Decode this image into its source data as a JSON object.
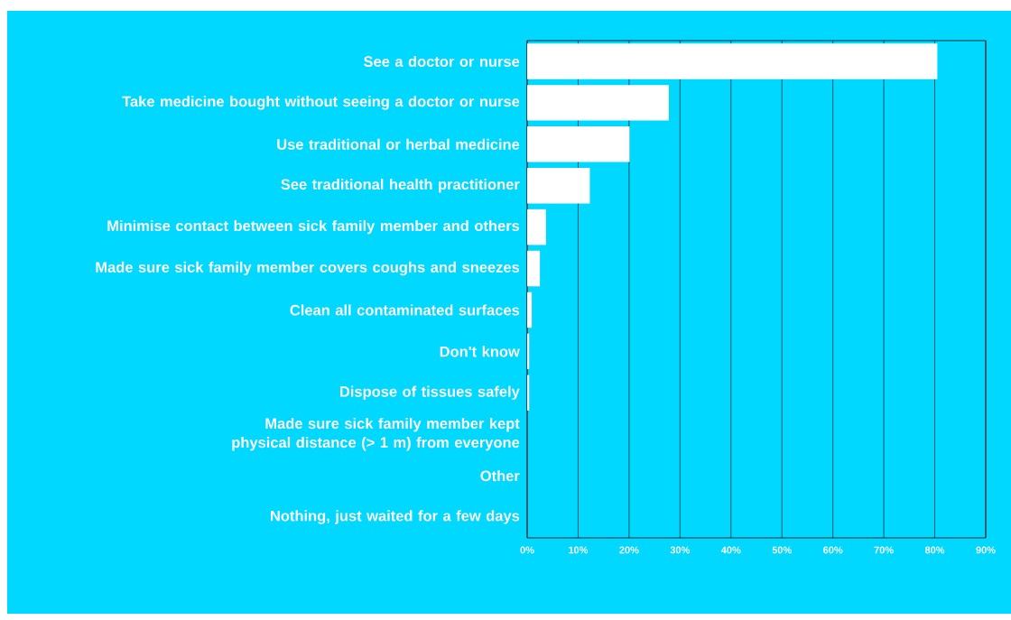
{
  "chart_data": {
    "type": "bar",
    "orientation": "horizontal",
    "categories": [
      "See a doctor or nurse",
      "Take medicine bought without seeing a doctor or nurse",
      "Use traditional or herbal medicine",
      "See traditional health practitioner",
      "Minimise contact between sick family member and others",
      "Made sure sick family member covers coughs and sneezes",
      "Clean all contaminated surfaces",
      "Don't know",
      "Dispose of tissues safely",
      "Made sure sick family member kept physical distance (> 1 m) from everyone",
      "Other",
      "Nothing, just waited for a few days"
    ],
    "values": [
      80.5,
      27.8,
      20.1,
      12.3,
      3.7,
      2.5,
      0.9,
      0.4,
      0.4,
      0,
      0,
      0
    ],
    "color": "#ffffff",
    "xlim": [
      0,
      90
    ],
    "xticks": [
      {
        "value": 0,
        "label": "0%"
      },
      {
        "value": 10,
        "label": "10%"
      },
      {
        "value": 20,
        "label": "20%"
      },
      {
        "value": 30,
        "label": "30%"
      },
      {
        "value": 40,
        "label": "40%"
      },
      {
        "value": 50,
        "label": "50%"
      },
      {
        "value": 60,
        "label": "60%"
      },
      {
        "value": 70,
        "label": "70%"
      },
      {
        "value": 80,
        "label": "80%"
      },
      {
        "value": 90,
        "label": "90%"
      }
    ],
    "grid": "x"
  }
}
